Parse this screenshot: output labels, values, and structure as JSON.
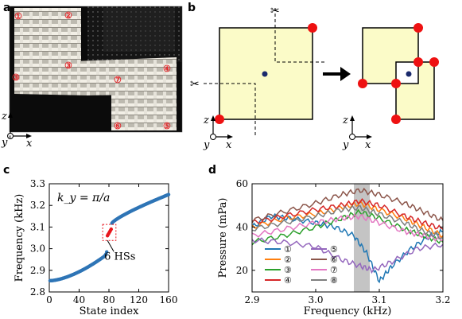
{
  "panels": {
    "a": {
      "label": "a",
      "markers": [
        "①",
        "②",
        "③",
        "④",
        "⑤",
        "⑥",
        "⑦",
        "⑧"
      ],
      "axes": {
        "z": "z",
        "y": "y",
        "x": "x"
      }
    },
    "b": {
      "label": "b",
      "axes": {
        "z": "z",
        "y": "y",
        "x": "x"
      },
      "colors": {
        "square": "#fbfbc8",
        "corner": "#ee1111",
        "center": "#1a2a6c",
        "arrow": "#000000"
      }
    },
    "c": {
      "label": "c"
    },
    "d": {
      "label": "d"
    }
  },
  "chart_data": [
    {
      "panel": "c",
      "type": "scatter",
      "xlabel": "State index",
      "ylabel": "Frequency (kHz)",
      "xlim": [
        0,
        160
      ],
      "ylim": [
        2.8,
        3.3
      ],
      "xticks": [
        "0",
        "40",
        "80",
        "120",
        "160"
      ],
      "yticks": [
        "2.8",
        "2.9",
        "3.0",
        "3.1",
        "3.2",
        "3.3"
      ],
      "annotation_formula": "k_y = π/a",
      "annotation": "6 HSs",
      "color": "#2e75b6",
      "bulk_lower": {
        "x_range": [
          1,
          74
        ],
        "y_start": 2.852,
        "y_end": 2.965
      },
      "bulk_lower_edge": [
        [
          75,
          2.97
        ],
        [
          76,
          2.975
        ],
        [
          77,
          2.985
        ]
      ],
      "hinge_states": [
        [
          78,
          3.06
        ],
        [
          79,
          3.066
        ],
        [
          80,
          3.072
        ],
        [
          81,
          3.078
        ],
        [
          82,
          3.084
        ],
        [
          83,
          3.09
        ]
      ],
      "bulk_upper": {
        "x_range": [
          84,
          160
        ],
        "y_start": 3.118,
        "y_end": 3.25
      }
    },
    {
      "panel": "d",
      "type": "line",
      "xlabel": "Frequency (kHz)",
      "ylabel": "Pressure (mPa)",
      "xlim": [
        2.9,
        3.2
      ],
      "ylim": [
        10,
        60
      ],
      "xticks": [
        "2.9",
        "3.0",
        "3.1",
        "3.2"
      ],
      "yticks": [
        "20",
        "40",
        "60"
      ],
      "highlight_band": [
        3.06,
        3.085
      ],
      "series": [
        {
          "name": "①",
          "color": "#1f77b4",
          "points": [
            [
              2.9,
              40
            ],
            [
              2.93,
              45
            ],
            [
              2.96,
              44
            ],
            [
              3.0,
              42
            ],
            [
              3.03,
              40
            ],
            [
              3.06,
              36
            ],
            [
              3.08,
              28
            ],
            [
              3.1,
              15
            ],
            [
              3.12,
              22
            ],
            [
              3.15,
              30
            ],
            [
              3.18,
              36
            ],
            [
              3.2,
              38
            ]
          ]
        },
        {
          "name": "②",
          "color": "#ff7f0e",
          "points": [
            [
              2.9,
              40
            ],
            [
              2.95,
              44
            ],
            [
              3.0,
              46
            ],
            [
              3.04,
              49
            ],
            [
              3.07,
              51
            ],
            [
              3.1,
              48
            ],
            [
              3.14,
              44
            ],
            [
              3.17,
              40
            ],
            [
              3.2,
              36
            ]
          ]
        },
        {
          "name": "③",
          "color": "#2ca02c",
          "points": [
            [
              2.9,
              33
            ],
            [
              2.95,
              36
            ],
            [
              3.0,
              40
            ],
            [
              3.04,
              44
            ],
            [
              3.07,
              47
            ],
            [
              3.1,
              44
            ],
            [
              3.14,
              39
            ],
            [
              3.17,
              36
            ],
            [
              3.2,
              33
            ]
          ]
        },
        {
          "name": "④",
          "color": "#d62728",
          "points": [
            [
              2.9,
              42
            ],
            [
              2.95,
              45
            ],
            [
              3.0,
              48
            ],
            [
              3.04,
              50
            ],
            [
              3.07,
              52
            ],
            [
              3.1,
              50
            ],
            [
              3.14,
              45
            ],
            [
              3.17,
              42
            ],
            [
              3.2,
              39
            ]
          ]
        },
        {
          "name": "⑤",
          "color": "#9467bd",
          "points": [
            [
              2.9,
              34
            ],
            [
              2.95,
              33
            ],
            [
              3.0,
              31
            ],
            [
              3.04,
              25
            ],
            [
              3.07,
              22
            ],
            [
              3.09,
              20
            ],
            [
              3.12,
              24
            ],
            [
              3.16,
              30
            ],
            [
              3.2,
              32
            ]
          ]
        },
        {
          "name": "⑥",
          "color": "#8c564b",
          "points": [
            [
              2.9,
              43
            ],
            [
              2.95,
              47
            ],
            [
              3.0,
              51
            ],
            [
              3.04,
              55
            ],
            [
              3.07,
              57
            ],
            [
              3.1,
              55
            ],
            [
              3.14,
              51
            ],
            [
              3.17,
              47
            ],
            [
              3.2,
              43
            ]
          ]
        },
        {
          "name": "⑦",
          "color": "#e377c2",
          "points": [
            [
              2.9,
              36
            ],
            [
              2.95,
              39
            ],
            [
              3.0,
              42
            ],
            [
              3.04,
              44
            ],
            [
              3.07,
              45
            ],
            [
              3.1,
              42
            ],
            [
              3.14,
              38
            ],
            [
              3.17,
              36
            ],
            [
              3.2,
              34
            ]
          ]
        },
        {
          "name": "⑧",
          "color": "#7f7f7f",
          "points": [
            [
              2.9,
              39
            ],
            [
              2.95,
              42
            ],
            [
              3.0,
              45
            ],
            [
              3.04,
              48
            ],
            [
              3.07,
              49
            ],
            [
              3.1,
              46
            ],
            [
              3.14,
              42
            ],
            [
              3.17,
              38
            ],
            [
              3.2,
              35
            ]
          ]
        }
      ]
    }
  ]
}
